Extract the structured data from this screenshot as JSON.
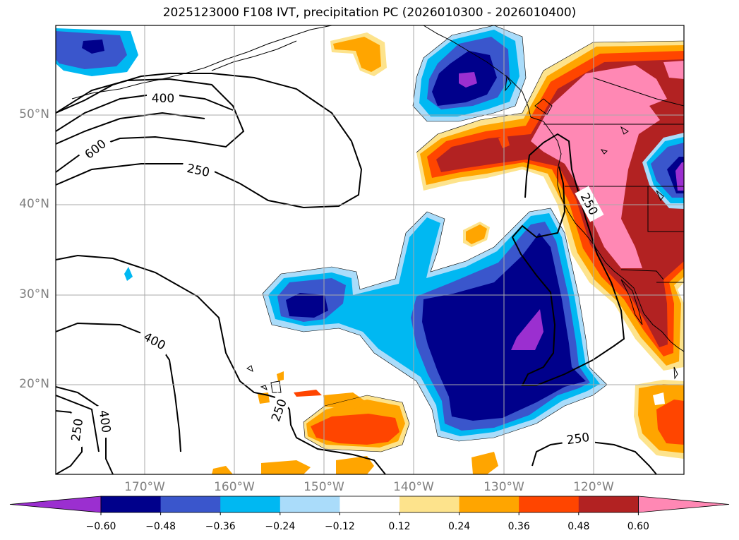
{
  "title": "2025123000 F108 IVT, precipitation PC (2026010300 - 2026010400)",
  "latitude_labels": [
    "50°N",
    "40°N",
    "30°N",
    "20°N"
  ],
  "longitude_labels": [
    "170°W",
    "160°W",
    "150°W",
    "140°W",
    "130°W",
    "120°W"
  ],
  "contour_labels": [
    "400",
    "600",
    "250",
    "400",
    "250",
    "400",
    "250",
    "250",
    "250"
  ],
  "colorbar": {
    "colors": [
      "#9b2fd0",
      "#00008b",
      "#3a56cc",
      "#00b8f2",
      "#aadcfa",
      "#ffffff",
      "#fde38c",
      "#ffa500",
      "#ff4500",
      "#b22222",
      "#ff88b4"
    ],
    "tick_labels": [
      "−0.60",
      "−0.48",
      "−0.36",
      "−0.24",
      "−0.12",
      "0.12",
      "0.24",
      "0.36",
      "0.48",
      "0.60"
    ]
  },
  "colors": {
    "coast": "#000000",
    "grid": "#a9a9a9",
    "contour": "#000000"
  }
}
